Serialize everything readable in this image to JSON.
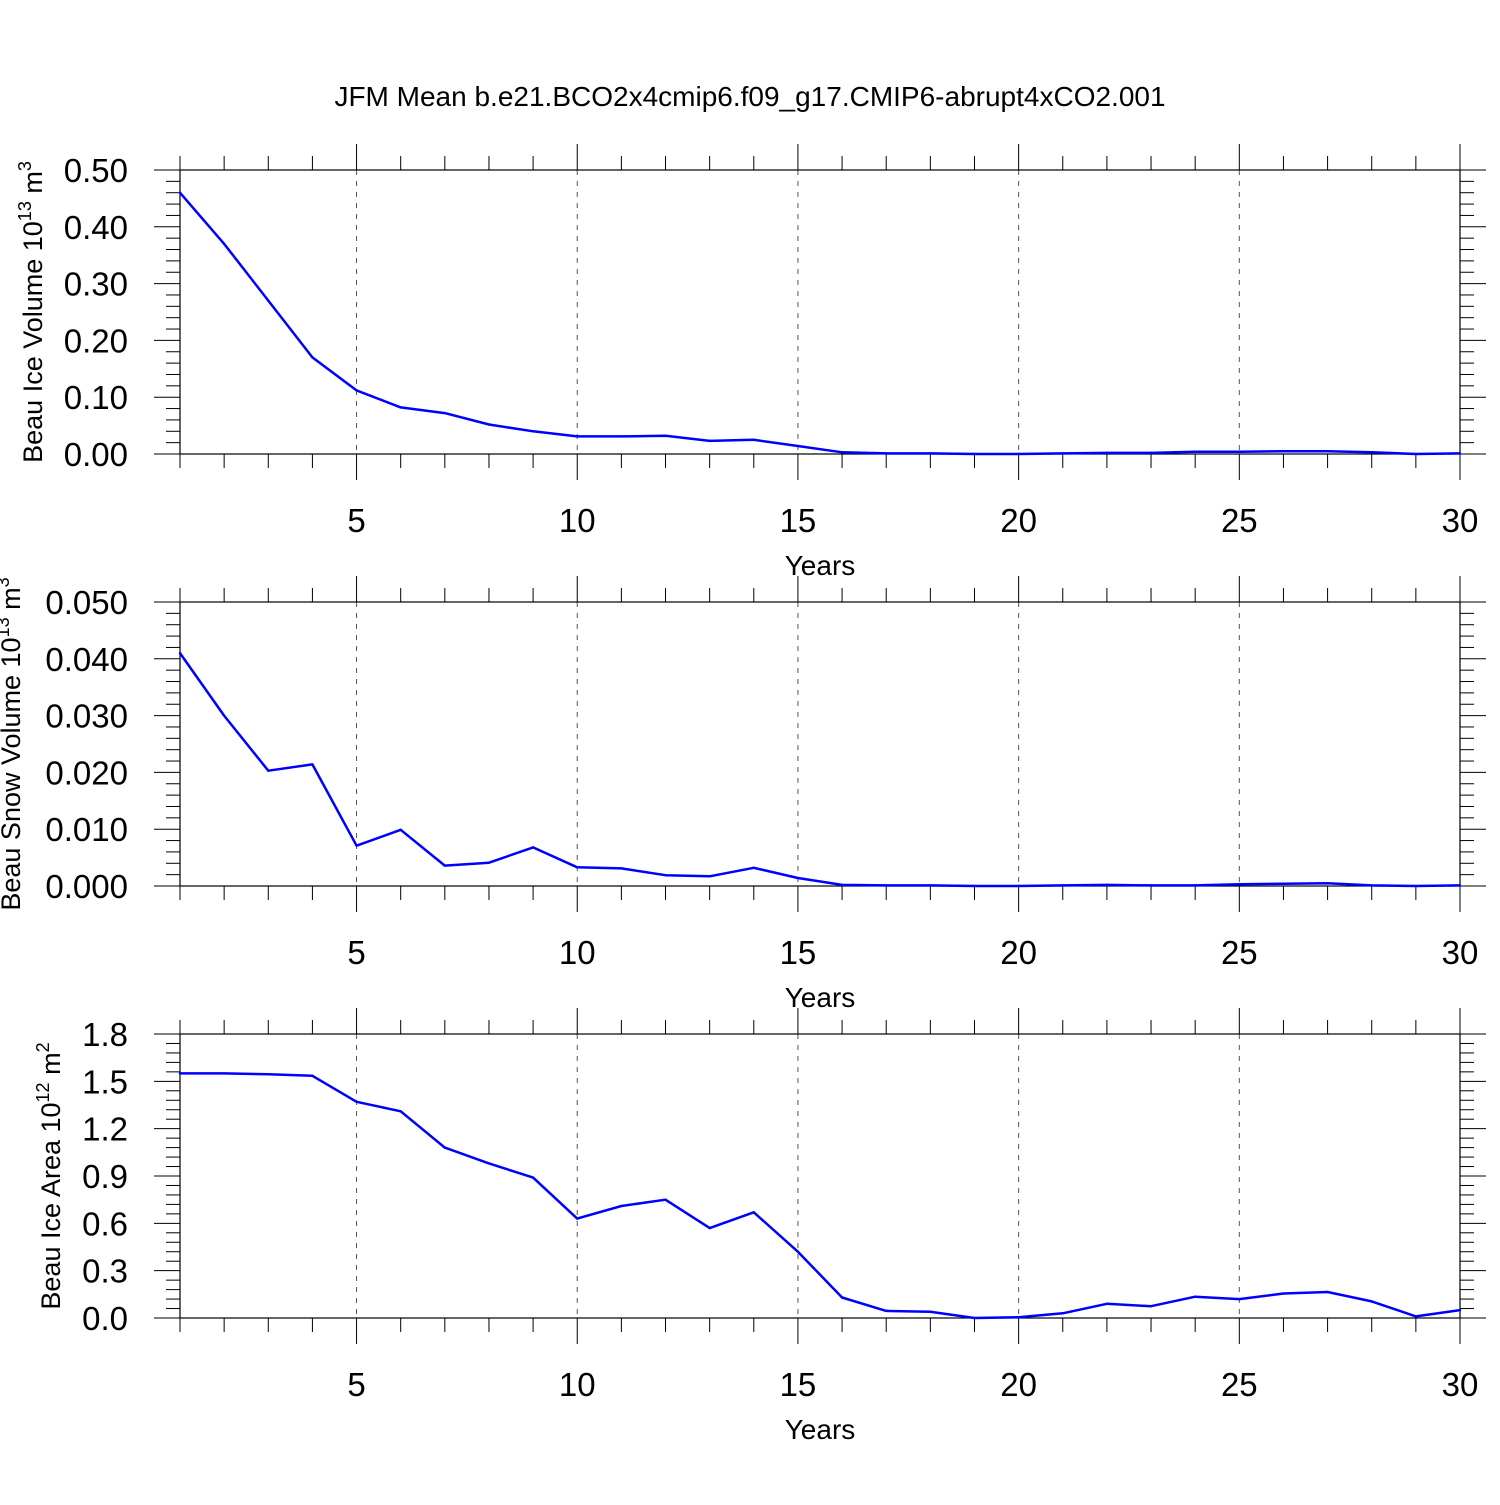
{
  "figure_title": "JFM Mean b.e21.BCO2x4cmip6.f09_g17.CMIP6-abrupt4xCO2.001",
  "colors": {
    "line": "#0000ff",
    "axis": "#000000",
    "grid": "#555555",
    "background": "#ffffff"
  },
  "chart_data": [
    {
      "type": "line",
      "title": "",
      "ylabel": {
        "base": "Beau Ice Volume 10",
        "exp": "13",
        "unit": " m",
        "unit_exp": "3"
      },
      "xlabel": "Years",
      "xlim": [
        1,
        30
      ],
      "ylim": [
        0,
        0.5
      ],
      "xticks": [
        5,
        10,
        15,
        20,
        25,
        30
      ],
      "xtick_labels": [
        "5",
        "10",
        "15",
        "20",
        "25",
        "30"
      ],
      "yticks": [
        0,
        0.1,
        0.2,
        0.3,
        0.4,
        0.5
      ],
      "ytick_labels": [
        "0.00",
        "0.10",
        "0.20",
        "0.30",
        "0.40",
        "0.50"
      ],
      "grid": "x-dashed",
      "series": [
        {
          "name": "Beau Ice Volume",
          "x": [
            1,
            2,
            3,
            4,
            5,
            6,
            7,
            8,
            9,
            10,
            11,
            12,
            13,
            14,
            15,
            16,
            17,
            18,
            19,
            20,
            21,
            22,
            23,
            24,
            25,
            26,
            27,
            28,
            29,
            30
          ],
          "values": [
            0.46,
            0.37,
            0.27,
            0.17,
            0.112,
            0.082,
            0.072,
            0.052,
            0.04,
            0.031,
            0.031,
            0.032,
            0.023,
            0.025,
            0.014,
            0.003,
            0.001,
            0.001,
            0.0,
            0.0,
            0.001,
            0.002,
            0.002,
            0.004,
            0.004,
            0.005,
            0.005,
            0.003,
            0.0,
            0.001
          ]
        }
      ]
    },
    {
      "type": "line",
      "title": "",
      "ylabel": {
        "base": "Beau Snow Volume 10",
        "exp": "13",
        "unit": " m",
        "unit_exp": "3"
      },
      "xlabel": "Years",
      "xlim": [
        1,
        30
      ],
      "ylim": [
        0,
        0.05
      ],
      "xticks": [
        5,
        10,
        15,
        20,
        25,
        30
      ],
      "xtick_labels": [
        "5",
        "10",
        "15",
        "20",
        "25",
        "30"
      ],
      "yticks": [
        0,
        0.01,
        0.02,
        0.03,
        0.04,
        0.05
      ],
      "ytick_labels": [
        "0.000",
        "0.010",
        "0.020",
        "0.030",
        "0.040",
        "0.050"
      ],
      "grid": "x-dashed",
      "series": [
        {
          "name": "Beau Snow Volume",
          "x": [
            1,
            2,
            3,
            4,
            5,
            6,
            7,
            8,
            9,
            10,
            11,
            12,
            13,
            14,
            15,
            16,
            17,
            18,
            19,
            20,
            21,
            22,
            23,
            24,
            25,
            26,
            27,
            28,
            29,
            30
          ],
          "values": [
            0.041,
            0.03,
            0.0203,
            0.0214,
            0.0071,
            0.0099,
            0.0036,
            0.0041,
            0.0068,
            0.0033,
            0.0031,
            0.0019,
            0.0017,
            0.0032,
            0.0014,
            0.0002,
            0.0001,
            0.0001,
            0.0,
            0.0,
            0.0001,
            0.0002,
            0.0001,
            0.0001,
            0.0003,
            0.0004,
            0.0005,
            0.0001,
            0.0,
            0.0001
          ]
        }
      ]
    },
    {
      "type": "line",
      "title": "",
      "ylabel": {
        "base": "Beau Ice Area 10",
        "exp": "12",
        "unit": " m",
        "unit_exp": "2"
      },
      "xlabel": "Years",
      "xlim": [
        1,
        30
      ],
      "ylim": [
        0,
        1.8
      ],
      "xticks": [
        5,
        10,
        15,
        20,
        25,
        30
      ],
      "xtick_labels": [
        "5",
        "10",
        "15",
        "20",
        "25",
        "30"
      ],
      "yticks": [
        0,
        0.3,
        0.6,
        0.9,
        1.2,
        1.5,
        1.8
      ],
      "ytick_labels": [
        "0.0",
        "0.3",
        "0.6",
        "0.9",
        "1.2",
        "1.5",
        "1.8"
      ],
      "grid": "x-dashed",
      "series": [
        {
          "name": "Beau Ice Area",
          "x": [
            1,
            2,
            3,
            4,
            5,
            6,
            7,
            8,
            9,
            10,
            11,
            12,
            13,
            14,
            15,
            16,
            17,
            18,
            19,
            20,
            21,
            22,
            23,
            24,
            25,
            26,
            27,
            28,
            29,
            30
          ],
          "values": [
            1.55,
            1.55,
            1.545,
            1.535,
            1.37,
            1.31,
            1.08,
            0.98,
            0.89,
            0.63,
            0.71,
            0.75,
            0.57,
            0.67,
            0.42,
            0.13,
            0.045,
            0.04,
            0.0,
            0.005,
            0.03,
            0.09,
            0.075,
            0.135,
            0.12,
            0.155,
            0.165,
            0.105,
            0.01,
            0.05
          ]
        }
      ]
    }
  ]
}
